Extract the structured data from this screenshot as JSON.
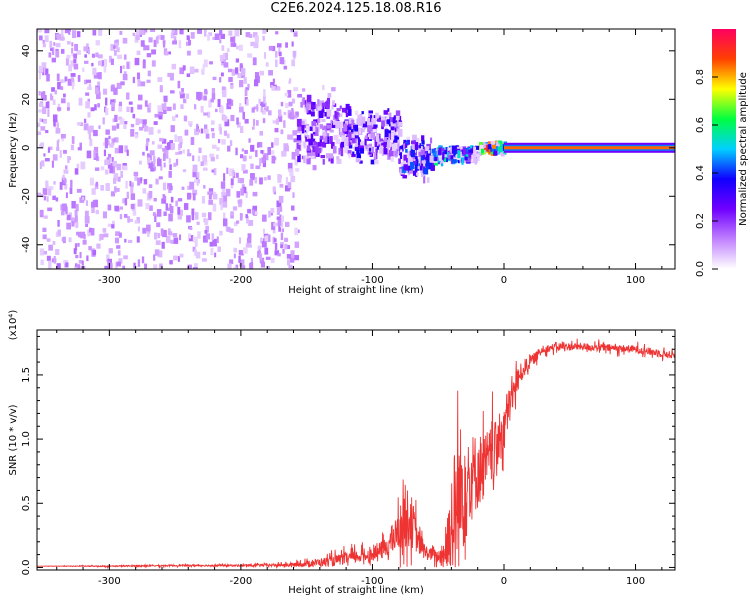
{
  "title": "C2E6.2024.125.18.08.R16",
  "chart_data": [
    {
      "type": "heatmap",
      "xlabel": "Height of straight line (km)",
      "ylabel": "Frequency (Hz)",
      "xlim": [
        -355,
        130
      ],
      "ylim": [
        -50,
        49
      ],
      "x_ticks": [
        -300,
        -200,
        -100,
        0,
        100
      ],
      "y_ticks": [
        -40,
        -20,
        0,
        20,
        40
      ],
      "colorbar": {
        "label": "Normalized spectral amplitude",
        "range": [
          0,
          1
        ],
        "ticks": [
          "0.0",
          "0.2",
          "0.4",
          "0.6",
          "0.8"
        ],
        "colors": [
          "#ffffff",
          "#c080ff",
          "#7000ff",
          "#1000ff",
          "#00d0ff",
          "#00ff40",
          "#ffff00",
          "#ff4000",
          "#ff0060"
        ]
      },
      "regions": [
        {
          "x": [
            -355,
            -158
          ],
          "freq_center": 0,
          "freq_halfwidth": 50,
          "amplitude": 0.1
        },
        {
          "x": [
            -158,
            -120
          ],
          "freq_center": 8,
          "freq_halfwidth": 15,
          "amplitude": 0.2
        },
        {
          "x": [
            -120,
            -80
          ],
          "freq_center": 5,
          "freq_halfwidth": 10,
          "amplitude": 0.25
        },
        {
          "x": [
            -80,
            -55
          ],
          "freq_center": -4,
          "freq_halfwidth": 8,
          "amplitude": 0.3
        },
        {
          "x": [
            -55,
            -20
          ],
          "freq_center": -3,
          "freq_halfwidth": 3,
          "amplitude": 0.4
        },
        {
          "x": [
            -20,
            0
          ],
          "freq_center": 0,
          "freq_halfwidth": 2,
          "amplitude": 0.6
        },
        {
          "x": [
            0,
            130
          ],
          "freq_center": 0,
          "freq_halfwidth": 1,
          "amplitude": 0.95
        }
      ]
    },
    {
      "type": "line",
      "xlabel": "Height of straight line (km)",
      "ylabel": "SNR (10 * v/v)",
      "y_multiplier": "(x10⁴)",
      "xlim": [
        -355,
        130
      ],
      "ylim": [
        -0.02,
        1.85
      ],
      "x_ticks": [
        -300,
        -200,
        -100,
        0,
        100
      ],
      "y_ticks": [
        "0.0",
        "0.5",
        "1.0",
        "1.5"
      ],
      "series_color": "#ee3333",
      "x": [
        -355,
        -300,
        -250,
        -200,
        -160,
        -130,
        -115,
        -100,
        -90,
        -80,
        -75,
        -70,
        -65,
        -60,
        -55,
        -50,
        -45,
        -40,
        -35,
        -30,
        -25,
        -20,
        -15,
        -10,
        -5,
        0,
        5,
        10,
        15,
        20,
        25,
        30,
        40,
        60,
        80,
        100,
        130
      ],
      "y": [
        0.01,
        0.01,
        0.015,
        0.015,
        0.02,
        0.05,
        0.08,
        0.1,
        0.15,
        0.28,
        0.4,
        0.35,
        0.2,
        0.12,
        0.1,
        0.08,
        0.12,
        0.3,
        0.5,
        0.65,
        0.7,
        0.75,
        0.8,
        0.85,
        0.95,
        1.1,
        1.3,
        1.45,
        1.55,
        1.6,
        1.65,
        1.7,
        1.72,
        1.72,
        1.71,
        1.7,
        1.65
      ],
      "noise": [
        0.0,
        0.005,
        0.006,
        0.008,
        0.015,
        0.04,
        0.05,
        0.05,
        0.08,
        0.15,
        0.25,
        0.2,
        0.1,
        0.06,
        0.05,
        0.05,
        0.15,
        0.5,
        0.6,
        0.5,
        0.35,
        0.3,
        0.25,
        0.25,
        0.2,
        0.2,
        0.15,
        0.1,
        0.07,
        0.05,
        0.04,
        0.03,
        0.03,
        0.03,
        0.03,
        0.03,
        0.03
      ]
    }
  ]
}
